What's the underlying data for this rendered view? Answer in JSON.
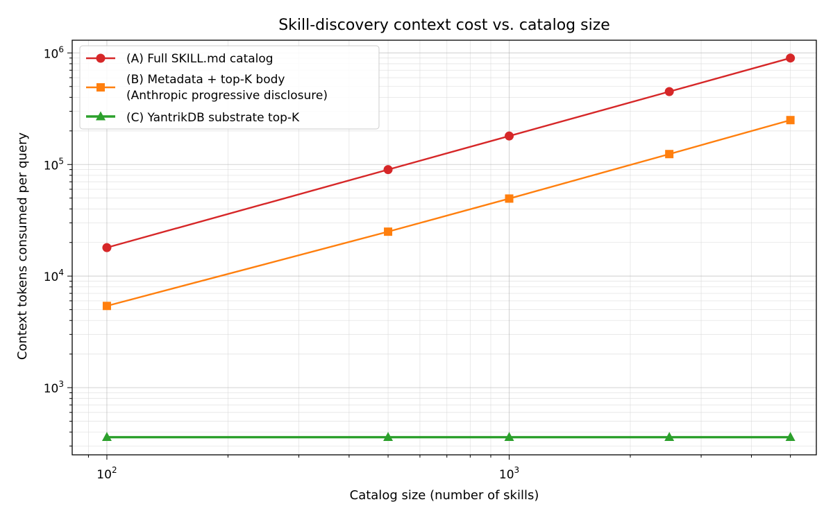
{
  "chart_data": {
    "type": "line",
    "title": "Skill-discovery context cost vs. catalog size",
    "xlabel": "Catalog size (number of skills)",
    "ylabel": "Context tokens consumed per query",
    "xscale": "log",
    "yscale": "log",
    "xlim": [
      82,
      5800
    ],
    "ylim": [
      250,
      1300000
    ],
    "grid": "on (major and minor, both axes)",
    "legend_placement": "top-left",
    "x_ticks": [
      {
        "value": 100,
        "base": "10",
        "exp": "2"
      },
      {
        "value": 1000,
        "base": "10",
        "exp": "3"
      }
    ],
    "y_ticks": [
      {
        "value": 1000,
        "base": "10",
        "exp": "3"
      },
      {
        "value": 10000,
        "base": "10",
        "exp": "4"
      },
      {
        "value": 100000,
        "base": "10",
        "exp": "5"
      },
      {
        "value": 1000000,
        "base": "10",
        "exp": "6"
      }
    ],
    "x": [
      100,
      500,
      1000,
      2500,
      5000
    ],
    "series": [
      {
        "name": "(A) Full SKILL.md catalog",
        "values": [
          18000,
          90000,
          180000,
          450000,
          900000
        ],
        "color": "#d62728",
        "marker": "circle"
      },
      {
        "name": "(B) Metadata + top-K body\n(Anthropic progressive disclosure)",
        "name_lines": [
          "(B) Metadata + top-K body",
          "(Anthropic progressive disclosure)"
        ],
        "values": [
          5400,
          25000,
          49500,
          124000,
          250000
        ],
        "color": "#ff7f0e",
        "marker": "square"
      },
      {
        "name": "(C) YantrikDB substrate top-K",
        "values": [
          360,
          360,
          360,
          360,
          360
        ],
        "color": "#2ca02c",
        "marker": "triangle"
      }
    ]
  }
}
